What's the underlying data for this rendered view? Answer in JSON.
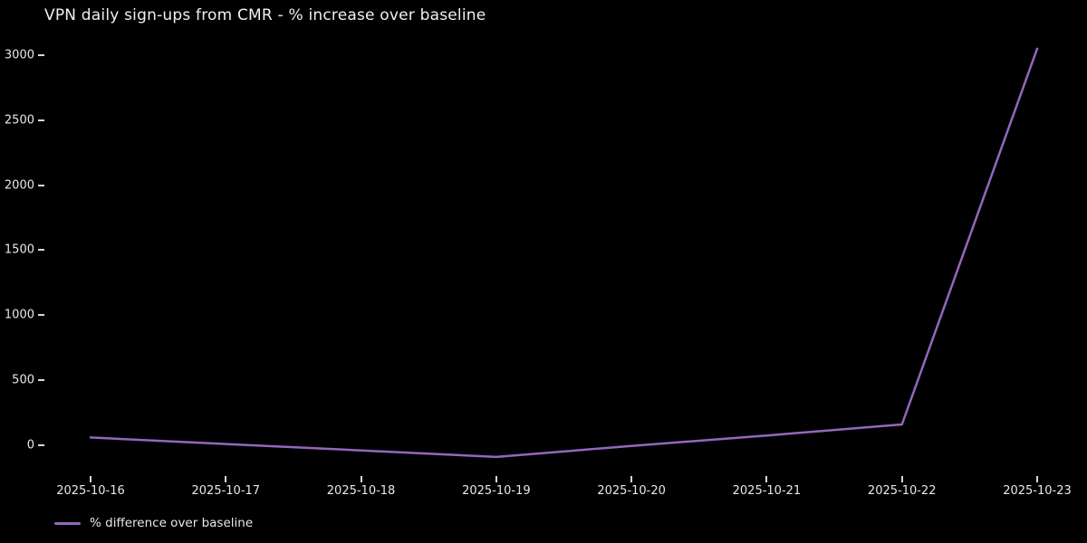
{
  "window": {
    "background_color": "#000000",
    "text_color": "#e8e8e8"
  },
  "chart": {
    "title": "VPN daily sign-ups from CMR - % increase over baseline",
    "legend": {
      "label": "% difference over baseline",
      "swatch_color": "#9467bd"
    }
  },
  "chart_data": {
    "type": "line",
    "title": "VPN daily sign-ups from CMR - % increase over baseline",
    "x": [
      "2025-10-16",
      "2025-10-17",
      "2025-10-18",
      "2025-10-19",
      "2025-10-20",
      "2025-10-21",
      "2025-10-22",
      "2025-10-23"
    ],
    "series": [
      {
        "name": "% difference over baseline",
        "color": "#9467bd",
        "values": [
          60,
          10,
          -40,
          -90,
          -5,
          75,
          160,
          3050
        ]
      }
    ],
    "xlabel": "",
    "ylabel": "",
    "yticks": [
      0,
      500,
      1000,
      1500,
      2000,
      2500,
      3000
    ],
    "ylim": [
      -150,
      3100
    ],
    "grid": false,
    "background": "#000000",
    "text_color": "#e8e8e8",
    "legend_position": "lower-left-outside"
  }
}
